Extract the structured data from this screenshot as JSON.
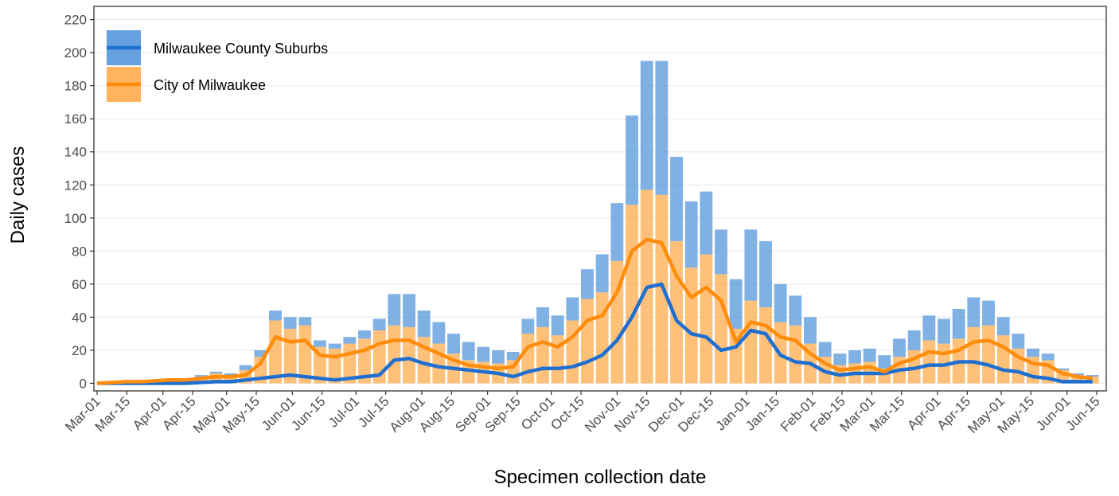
{
  "chart_data": {
    "type": "bar",
    "x_label": "Specimen collection date",
    "y_label": "Daily cases",
    "stacked": true,
    "grid": "y",
    "legend_position": "top-left",
    "x": [
      0,
      7,
      14,
      21,
      28,
      35,
      42,
      49,
      56,
      63,
      70,
      77,
      84,
      91,
      98,
      105,
      112,
      119,
      126,
      133,
      140,
      147,
      154,
      161,
      168,
      175,
      182,
      189,
      196,
      203,
      210,
      217,
      224,
      231,
      238,
      245,
      252,
      259,
      266,
      273,
      280,
      287,
      294,
      301,
      308,
      315,
      322,
      329,
      336,
      343,
      350,
      357,
      364,
      371,
      378,
      385,
      392,
      399,
      406,
      413,
      420,
      427,
      434,
      441,
      448,
      455,
      462,
      469
    ],
    "series": [
      {
        "name": "Milwaukee County Suburbs",
        "color": "#1f6fd1",
        "bar_color": "#4a90d9",
        "values": [
          0,
          0,
          0,
          0,
          0,
          0,
          0,
          1,
          1,
          1,
          3,
          4,
          6,
          7,
          5,
          4,
          3,
          4,
          5,
          7,
          19,
          20,
          16,
          13,
          12,
          11,
          9,
          8,
          5,
          9,
          12,
          12,
          14,
          18,
          23,
          35,
          54,
          78,
          81,
          51,
          40,
          38,
          27,
          30,
          43,
          40,
          23,
          18,
          16,
          9,
          7,
          8,
          8,
          8,
          11,
          12,
          15,
          15,
          18,
          18,
          15,
          11,
          9,
          5,
          4,
          1,
          1,
          1
        ],
        "rolling_values": [
          0,
          0,
          0,
          0,
          0,
          0,
          0,
          0.5,
          1,
          1,
          2,
          3,
          4,
          5,
          4,
          3,
          2,
          3,
          4,
          5,
          14,
          15,
          12,
          10,
          9,
          8,
          7,
          6,
          4,
          7,
          9,
          9,
          10,
          13,
          17,
          26,
          40,
          58,
          60,
          38,
          30,
          28,
          20,
          22,
          32,
          30,
          17,
          13,
          12,
          7,
          5,
          6,
          6,
          6,
          8,
          9,
          11,
          11,
          13,
          13,
          11,
          8,
          7,
          4,
          3,
          1,
          1,
          1
        ]
      },
      {
        "name": "City of Milwaukee",
        "color": "#ff8c0a",
        "bar_color": "#ffa640",
        "values": [
          0,
          1,
          1,
          2,
          2,
          3,
          3,
          4,
          6,
          5,
          8,
          16,
          38,
          33,
          35,
          22,
          21,
          24,
          27,
          32,
          35,
          34,
          28,
          24,
          18,
          14,
          13,
          12,
          14,
          30,
          34,
          29,
          38,
          51,
          55,
          74,
          108,
          117,
          114,
          86,
          70,
          78,
          66,
          33,
          50,
          46,
          37,
          35,
          24,
          16,
          11,
          12,
          13,
          9,
          16,
          20,
          26,
          24,
          27,
          34,
          35,
          29,
          21,
          16,
          14,
          8,
          5,
          4
        ],
        "rolling_values": [
          0,
          0.5,
          1,
          1,
          1.5,
          2,
          2,
          3,
          4,
          4,
          5,
          12,
          28,
          25,
          26,
          17,
          16,
          18,
          20,
          24,
          26,
          26,
          22,
          18,
          14,
          11,
          10,
          9,
          10,
          22,
          25,
          22,
          28,
          38,
          41,
          55,
          80,
          87,
          85,
          65,
          52,
          58,
          50,
          25,
          37,
          35,
          28,
          26,
          18,
          12,
          8,
          9,
          10,
          7,
          12,
          15,
          19,
          18,
          20,
          25,
          26,
          22,
          16,
          12,
          11,
          6,
          4,
          3
        ]
      }
    ],
    "xlim": [
      -1.5,
      475.5
    ],
    "xticks": [
      {
        "value": 0,
        "label": "Mar-01"
      },
      {
        "value": 14,
        "label": "Mar-15"
      },
      {
        "value": 31,
        "label": "Apr-01"
      },
      {
        "value": 45,
        "label": "Apr-15"
      },
      {
        "value": 61,
        "label": "May-01"
      },
      {
        "value": 75,
        "label": "May-15"
      },
      {
        "value": 92,
        "label": "Jun-01"
      },
      {
        "value": 106,
        "label": "Jun-15"
      },
      {
        "value": 122,
        "label": "Jul-01"
      },
      {
        "value": 136,
        "label": "Jul-15"
      },
      {
        "value": 153,
        "label": "Aug-01"
      },
      {
        "value": 167,
        "label": "Aug-15"
      },
      {
        "value": 184,
        "label": "Sep-01"
      },
      {
        "value": 198,
        "label": "Sep-15"
      },
      {
        "value": 214,
        "label": "Oct-01"
      },
      {
        "value": 228,
        "label": "Oct-15"
      },
      {
        "value": 245,
        "label": "Nov-01"
      },
      {
        "value": 259,
        "label": "Nov-15"
      },
      {
        "value": 275,
        "label": "Dec-01"
      },
      {
        "value": 289,
        "label": "Dec-15"
      },
      {
        "value": 306,
        "label": "Jan-01"
      },
      {
        "value": 320,
        "label": "Jan-15"
      },
      {
        "value": 337,
        "label": "Feb-01"
      },
      {
        "value": 351,
        "label": "Feb-15"
      },
      {
        "value": 365,
        "label": "Mar-01"
      },
      {
        "value": 379,
        "label": "Mar-15"
      },
      {
        "value": 396,
        "label": "Apr-01"
      },
      {
        "value": 410,
        "label": "Apr-15"
      },
      {
        "value": 426,
        "label": "May-01"
      },
      {
        "value": 440,
        "label": "May-15"
      },
      {
        "value": 457,
        "label": "Jun-01"
      },
      {
        "value": 471,
        "label": "Jun-15"
      }
    ],
    "ylim": [
      -4.6,
      228
    ],
    "yticks": [
      0,
      20,
      40,
      60,
      80,
      100,
      120,
      140,
      160,
      180,
      200,
      220
    ]
  }
}
